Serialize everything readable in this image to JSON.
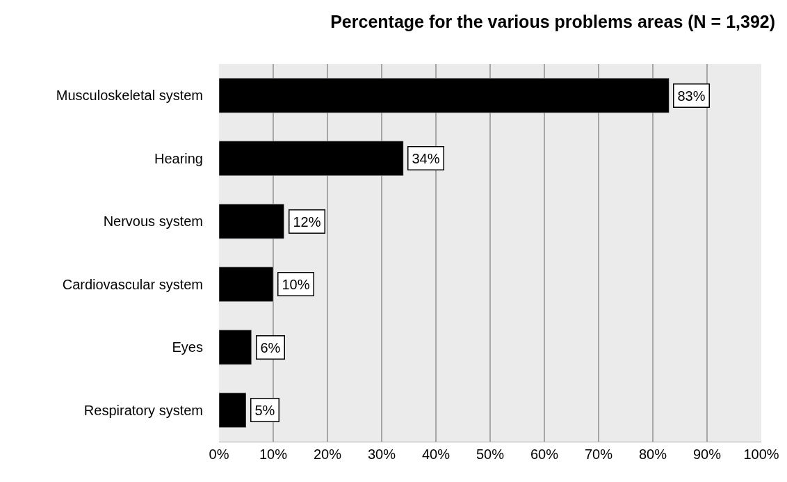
{
  "chart_data": {
    "type": "bar",
    "orientation": "horizontal",
    "title": "Percentage for the various problems areas (N = 1,392)",
    "categories": [
      "Musculoskeletal system",
      "Hearing",
      "Nervous system",
      "Cardiovascular system",
      "Eyes",
      "Respiratory system"
    ],
    "values": [
      83,
      34,
      12,
      10,
      6,
      5
    ],
    "value_labels": [
      "83%",
      "34%",
      "12%",
      "10%",
      "6%",
      "5%"
    ],
    "color": "#000000",
    "xlim": [
      0,
      100
    ],
    "xticks": [
      {
        "value": 0,
        "label": "0%"
      },
      {
        "value": 10,
        "label": "10%"
      },
      {
        "value": 20,
        "label": "20%"
      },
      {
        "value": 30,
        "label": "30%"
      },
      {
        "value": 40,
        "label": "40%"
      },
      {
        "value": 50,
        "label": "50%"
      },
      {
        "value": 60,
        "label": "60%"
      },
      {
        "value": 70,
        "label": "70%"
      },
      {
        "value": 80,
        "label": "80%"
      },
      {
        "value": 90,
        "label": "90%"
      },
      {
        "value": 100,
        "label": "100%"
      }
    ],
    "grid": "x",
    "legend": false
  }
}
